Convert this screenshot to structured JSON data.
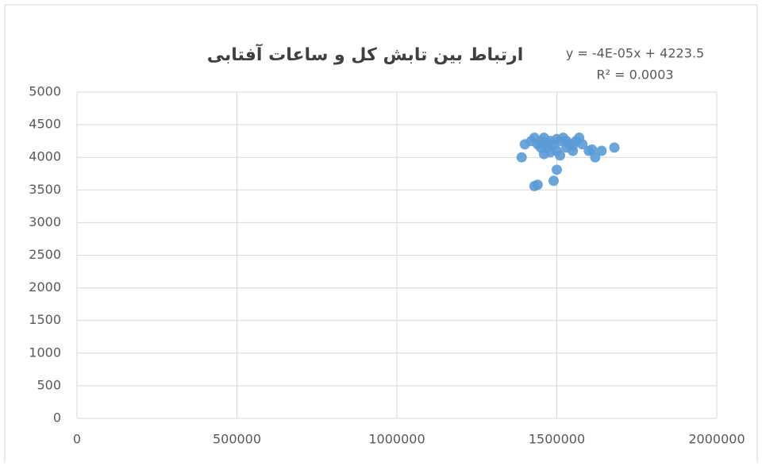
{
  "chart_data": {
    "type": "scatter",
    "title": "ارتباط بین تابش کل و ساعات آفتابی",
    "annotations": [
      "y = -4E-05x + 4223.5",
      "R² = 0.0003"
    ],
    "color": "#5b9bd5",
    "x": [
      1390000,
      1400000,
      1420000,
      1430000,
      1440000,
      1450000,
      1460000,
      1470000,
      1480000,
      1490000,
      1500000,
      1510000,
      1520000,
      1530000,
      1540000,
      1550000,
      1560000,
      1570000,
      1580000,
      1600000,
      1620000,
      1640000,
      1680000,
      1430000,
      1440000,
      1490000,
      1500000,
      1460000,
      1480000,
      1510000,
      1450000,
      1470000,
      1500000,
      1530000,
      1550000,
      1610000
    ],
    "values": [
      4000,
      4200,
      4250,
      4300,
      4200,
      4250,
      4300,
      4150,
      4250,
      4200,
      4100,
      4250,
      4300,
      4150,
      4200,
      4100,
      4250,
      4300,
      4200,
      4100,
      4000,
      4100,
      4150,
      3560,
      3580,
      3640,
      3810,
      4050,
      4080,
      4030,
      4150,
      4220,
      4280,
      4250,
      4180,
      4120
    ],
    "xlim": [
      0,
      2000000
    ],
    "xticks": [
      0,
      500000,
      1000000,
      1500000,
      2000000
    ],
    "ylim": [
      0,
      5000
    ],
    "yticks": [
      0,
      500,
      1000,
      1500,
      2000,
      2500,
      3000,
      3500,
      4000,
      4500,
      5000
    ],
    "grid": true
  }
}
